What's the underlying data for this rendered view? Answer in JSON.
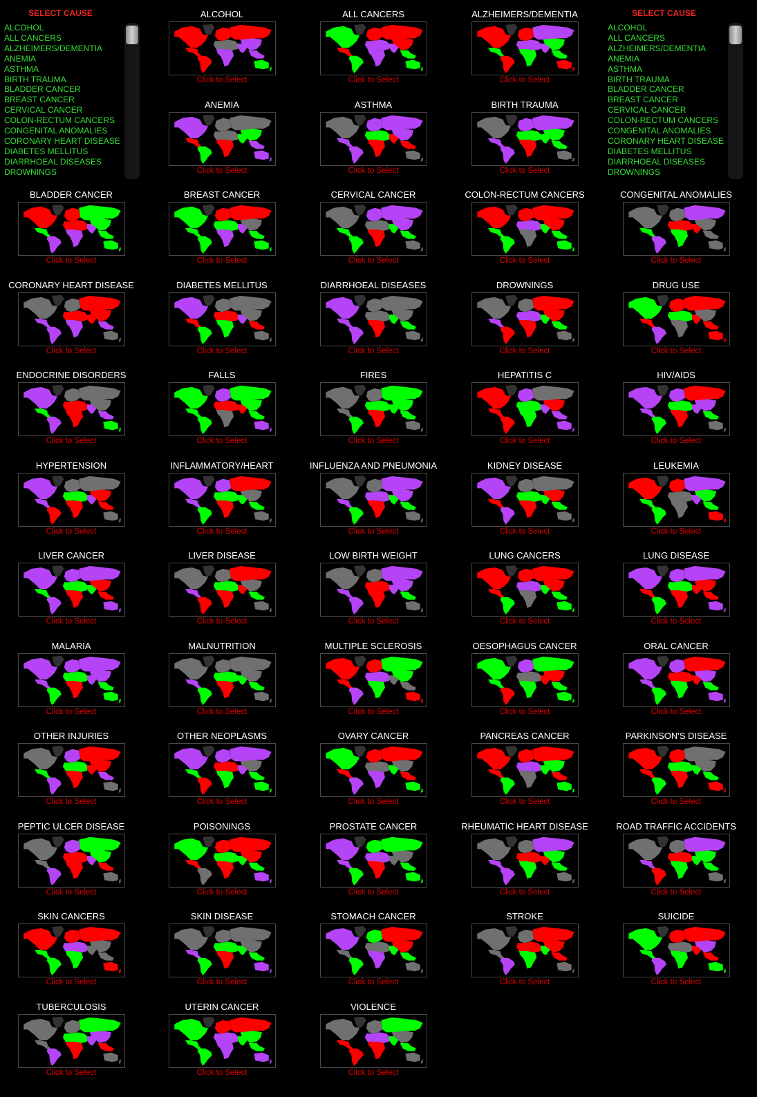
{
  "palette": {
    "R": "#ff0000",
    "G": "#00ff00",
    "P": "#b444f5",
    "Y": "#707070",
    "greenland": "#333333"
  },
  "map_region_order": [
    "north-america",
    "central-america",
    "south-america",
    "europe",
    "russia",
    "middle-east",
    "africa",
    "south-asia",
    "east-asia",
    "southeast-asia",
    "australia"
  ],
  "select_panel": {
    "title": "SELECT CAUSE",
    "visible_items": [
      "ALCOHOL",
      "ALL CANCERS",
      "ALZHEIMERS/DEMENTIA",
      "ANEMIA",
      "ASTHMA",
      "BIRTH TRAUMA",
      "BLADDER CANCER",
      "BREAST CANCER",
      "CERVICAL CANCER",
      "COLON-RECTUM CANCERS",
      "CONGENITAL ANOMALIES",
      "CORONARY HEART DISEASE",
      "DIABETES MELLITUS",
      "DIARRHOEAL DISEASES",
      "DROWNINGS"
    ]
  },
  "click_label": "Click to Select",
  "causes": [
    {
      "name": "ALCOHOL",
      "map": "RRRRRYPPPPG"
    },
    {
      "name": "ALL CANCERS",
      "map": "GRGRRPPPRGG"
    },
    {
      "name": "ALZHEIMERS/DEMENTIA",
      "map": "RGRRPPGPGGR"
    },
    {
      "name": "ANEMIA",
      "map": "PRGYYYRGGPP"
    },
    {
      "name": "ASTHMA",
      "map": "YPPPPGRRPRY"
    },
    {
      "name": "BIRTH TRAUMA",
      "map": "YPPPPGRGGGY"
    },
    {
      "name": "BLADDER CANCER",
      "map": "RGPRGRPPGGG"
    },
    {
      "name": "BREAST CANCER",
      "map": "GGGRRGPPYGG"
    },
    {
      "name": "CERVICAL CANCER",
      "map": "YGGPPYRGPGY"
    },
    {
      "name": "COLON-RECTUM CANCERS",
      "map": "RGGRRPYGRGG"
    },
    {
      "name": "CONGENITAL ANOMALIES",
      "map": "YGPYPRGRYYY"
    },
    {
      "name": "CORONARY HEART DISEASE",
      "map": "YPPYRRPRRPY"
    },
    {
      "name": "DIABETES MELLITUS",
      "map": "PRGYYRGPYRY"
    },
    {
      "name": "DIARRHOEAL DISEASES",
      "map": "PPPYYYRGYGY"
    },
    {
      "name": "DROWNINGS",
      "map": "YPRYRPRGRGY"
    },
    {
      "name": "DRUG USE",
      "map": "GRPRRGYRYRR"
    },
    {
      "name": "ENDOCRINE DISORDERS",
      "map": "PGPYYRRPYPG"
    },
    {
      "name": "FALLS",
      "map": "GGGPGRYRGGP"
    },
    {
      "name": "FIRES",
      "map": "YYGYGGRGGGY"
    },
    {
      "name": "HEPATITIS C",
      "map": "RRRPYGGPRPP"
    },
    {
      "name": "HIV/AIDS",
      "map": "PPGPRGRPPGY"
    },
    {
      "name": "HYPERTENSION",
      "map": "PPRYYGRPRRY"
    },
    {
      "name": "INFLAMMATORY/HEART",
      "map": "PPGPRGRGYGY"
    },
    {
      "name": "INFLUENZA AND PNEUMONIA",
      "map": "YPGYPPRGPGY"
    },
    {
      "name": "KIDNEY DISEASE",
      "map": "PRPYYGRGRGY"
    },
    {
      "name": "LEUKEMIA",
      "map": "RGGRPYYPGGR"
    },
    {
      "name": "LIVER CANCER",
      "map": "PGPPPGRGRRP"
    },
    {
      "name": "LIVER DISEASE",
      "map": "YPRYRGRRYGY"
    },
    {
      "name": "LOW BIRTH WEIGHT",
      "map": "YPPYPRRPPGY"
    },
    {
      "name": "LUNG CANCERS",
      "map": "RRGRRPYGRGG"
    },
    {
      "name": "LUNG DISEASE",
      "map": "PRGPPGRRRRP"
    },
    {
      "name": "MALARIA",
      "map": "PPGPPGRPPGG"
    },
    {
      "name": "MALNUTRITION",
      "map": "YPGYYGRGYGY"
    },
    {
      "name": "MULTIPLE SCLEROSIS",
      "map": "RRPRGPGYGYR"
    },
    {
      "name": "OESOPHAGUS CANCER",
      "map": "GGRPGYGRRGG"
    },
    {
      "name": "ORAL CANCER",
      "map": "PPGPRRGRPGP"
    },
    {
      "name": "OTHER INJURIES",
      "map": "YGPPRGRRRPY"
    },
    {
      "name": "OTHER NEOPLASMS",
      "map": "PGRPPRGPYGG"
    },
    {
      "name": "OVARY CANCER",
      "map": "GRPRRYPGYRG"
    },
    {
      "name": "PANCREAS CANCER",
      "map": "RRGRRPYGGRG"
    },
    {
      "name": "PARKINSON'S DISEASE",
      "map": "RRGRYGRGYGR"
    },
    {
      "name": "PEPTIC ULCER DISEASE",
      "map": "YYPPGRRPGRY"
    },
    {
      "name": "POISONINGS",
      "map": "GRYRRGRGRGP"
    },
    {
      "name": "PROSTATE CANCER",
      "map": "PPGGGPRYYGG"
    },
    {
      "name": "RHEUMATIC HEART DISEASE",
      "map": "YPPYPRGRGGY"
    },
    {
      "name": "ROAD TRAFFIC ACCIDENTS",
      "map": "YPRYPRGGGGY"
    },
    {
      "name": "SKIN CANCERS",
      "map": "RGGRRPGYYYR"
    },
    {
      "name": "SKIN DISEASE",
      "map": "YPGYYGRGYGP"
    },
    {
      "name": "STOMACH CANCER",
      "map": "PYGGRYPGRGY"
    },
    {
      "name": "STROKE",
      "map": "YYPYRRGGRRY"
    },
    {
      "name": "SUICIDE",
      "map": "GGPRRYGRPRG"
    },
    {
      "name": "TUBERCULOSIS",
      "map": "YYPYGGRPPRY"
    },
    {
      "name": "UTERIN CANCER",
      "map": "GGGRRPPGGGP"
    },
    {
      "name": "VIOLENCE",
      "map": "YRRYGPRGYGY"
    }
  ]
}
